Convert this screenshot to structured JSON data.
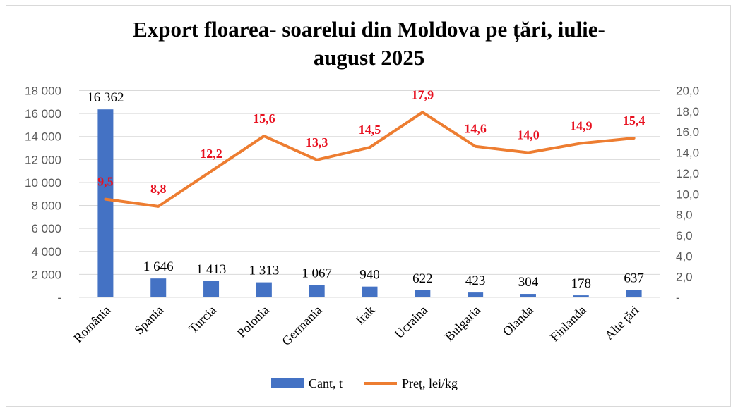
{
  "chart_data": {
    "type": "bar+line",
    "title_lines": [
      "Export floarea- soarelui din Moldova pe țări, iulie-",
      "august 2025"
    ],
    "categories": [
      "România",
      "Spania",
      "Turcia",
      "Polonia",
      "Germania",
      "Irak",
      "Ucraina",
      "Bulgaria",
      "Olanda",
      "Finlanda",
      "Alte țări"
    ],
    "series": [
      {
        "name": "Cant, t",
        "type": "bar",
        "axis": "left",
        "color": "#4472c4",
        "values": [
          16362,
          1646,
          1413,
          1313,
          1067,
          940,
          622,
          423,
          304,
          178,
          637
        ],
        "labels": [
          "16 362",
          "1 646",
          "1 413",
          "1 313",
          "1 067",
          "940",
          "622",
          "423",
          "304",
          "178",
          "637"
        ]
      },
      {
        "name": "Preț, lei/kg",
        "type": "line",
        "axis": "right",
        "color": "#ed7d31",
        "label_color": "#e8101f",
        "values": [
          9.5,
          8.8,
          12.2,
          15.6,
          13.3,
          14.5,
          17.9,
          14.6,
          14.0,
          14.9,
          15.4
        ],
        "labels": [
          "9,5",
          "8,8",
          "12,2",
          "15,6",
          "13,3",
          "14,5",
          "17,9",
          "14,6",
          "14,0",
          "14,9",
          "15,4"
        ]
      }
    ],
    "y_left": {
      "min": 0,
      "max": 18000,
      "step": 2000,
      "tick_labels": [
        "-",
        "2 000",
        "4 000",
        "6 000",
        "8 000",
        "10 000",
        "12 000",
        "14 000",
        "16 000",
        "18 000"
      ]
    },
    "y_right": {
      "min": 0,
      "max": 20,
      "step": 2,
      "tick_labels": [
        "-",
        "2,0",
        "4,0",
        "6,0",
        "8,0",
        "10,0",
        "12,0",
        "14,0",
        "16,0",
        "18,0",
        "20,0"
      ]
    },
    "grid": true,
    "legend_position": "bottom"
  }
}
